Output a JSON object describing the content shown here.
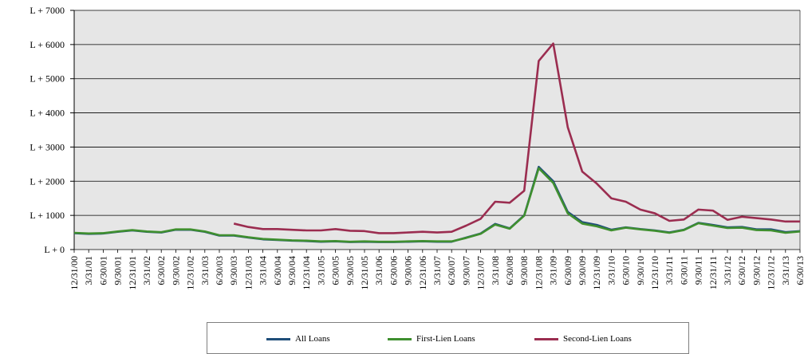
{
  "chart_data": {
    "type": "line",
    "title": "",
    "xlabel": "",
    "ylabel": "",
    "y_tick_labels": [
      "L + 0",
      "L + 1000",
      "L + 2000",
      "L + 3000",
      "L + 4000",
      "L + 5000",
      "L + 6000",
      "L + 7000"
    ],
    "ylim": [
      0,
      7000
    ],
    "grid": true,
    "legend_position": "bottom",
    "x": [
      "12/31/00",
      "3/31/01",
      "6/30/01",
      "9/30/01",
      "12/31/01",
      "3/31/02",
      "6/30/02",
      "9/30/02",
      "12/31/02",
      "3/31/03",
      "6/30/03",
      "9/30/03",
      "12/31/03",
      "3/31/04",
      "6/30/04",
      "9/30/04",
      "12/31/04",
      "3/31/05",
      "6/30/05",
      "9/30/05",
      "12/31/05",
      "3/31/06",
      "6/30/06",
      "9/30/06",
      "12/31/06",
      "3/31/07",
      "6/30/07",
      "9/30/07",
      "12/31/07",
      "3/31/08",
      "6/30/08",
      "9/30/08",
      "12/31/08",
      "3/31/09",
      "6/30/09",
      "9/30/09",
      "12/31/09",
      "3/31/10",
      "6/30/10",
      "9/30/10",
      "12/31/10",
      "3/31/11",
      "6/30/11",
      "9/30/11",
      "12/31/11",
      "3/31/12",
      "6/30/12",
      "9/30/12",
      "12/31/12",
      "3/31/13",
      "6/30/13"
    ],
    "series": [
      {
        "name": "All Loans",
        "color": "#1f4e79",
        "values": [
          480,
          460,
          470,
          520,
          560,
          520,
          500,
          580,
          580,
          520,
          410,
          410,
          350,
          300,
          280,
          260,
          250,
          230,
          240,
          220,
          230,
          220,
          220,
          230,
          240,
          230,
          230,
          350,
          470,
          750,
          620,
          1000,
          2420,
          2000,
          1100,
          800,
          720,
          580,
          650,
          600,
          560,
          500,
          580,
          780,
          720,
          650,
          660,
          590,
          590,
          510,
          540
        ]
      },
      {
        "name": "First-Lien Loans",
        "color": "#3f8f2f",
        "values": [
          490,
          470,
          480,
          530,
          570,
          530,
          510,
          590,
          590,
          530,
          420,
          420,
          360,
          310,
          290,
          270,
          260,
          240,
          250,
          230,
          240,
          230,
          230,
          240,
          250,
          240,
          240,
          340,
          460,
          730,
          610,
          990,
          2380,
          1950,
          1060,
          760,
          680,
          560,
          640,
          590,
          550,
          490,
          570,
          770,
          700,
          630,
          640,
          570,
          560,
          490,
          530
        ]
      },
      {
        "name": "Second-Lien Loans",
        "color": "#9b2d50",
        "values": [
          null,
          null,
          null,
          null,
          null,
          null,
          null,
          null,
          null,
          null,
          null,
          760,
          660,
          600,
          600,
          580,
          560,
          560,
          600,
          550,
          540,
          480,
          480,
          500,
          520,
          500,
          520,
          700,
          900,
          1400,
          1370,
          1720,
          5520,
          6030,
          3580,
          2280,
          1930,
          1500,
          1400,
          1170,
          1060,
          840,
          880,
          1170,
          1140,
          870,
          960,
          920,
          880,
          820,
          820
        ]
      }
    ]
  }
}
